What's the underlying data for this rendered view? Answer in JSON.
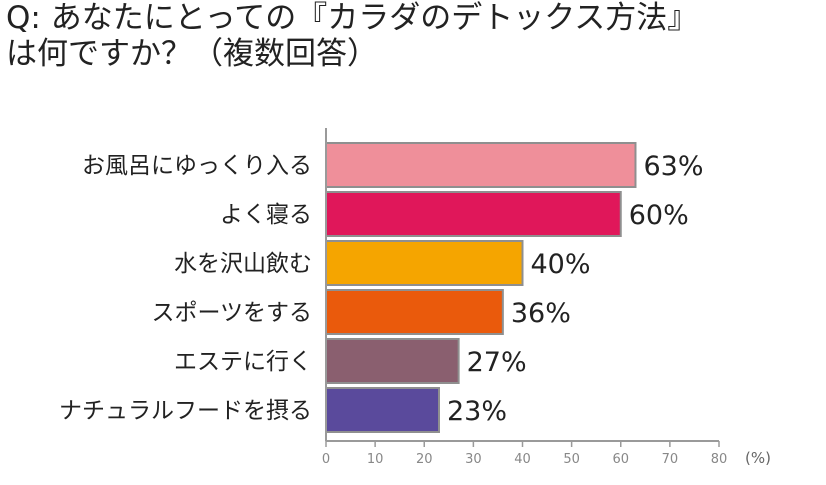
{
  "chart_data": {
    "type": "bar",
    "orientation": "horizontal",
    "title": "Q: あなたにとっての『カラダのデトックス方法』は何ですか？（複数回答）",
    "title_lines": [
      "Q: あなたにとっての『カラダのデトックス方法』",
      "は何ですか？（複数回答）"
    ],
    "categories": [
      "お風呂にゆっくり入る",
      "よく寝る",
      "水を沢山飲む",
      "スポーツをする",
      "エステに行く",
      "ナチュラルフードを摂る"
    ],
    "values": [
      63,
      60,
      40,
      36,
      27,
      23
    ],
    "value_labels": [
      "63%",
      "60%",
      "40%",
      "36%",
      "27%",
      "23%"
    ],
    "colors": [
      "#ef8f9a",
      "#e0175a",
      "#f5a500",
      "#ea5a0c",
      "#8a5f6f",
      "#5a4a9c"
    ],
    "xlim": [
      0,
      80
    ],
    "xticks": [
      0,
      10,
      20,
      30,
      40,
      50,
      60,
      70,
      80
    ],
    "xlabel": "(%)",
    "ylabel": "",
    "grid": false,
    "legend": "none"
  }
}
